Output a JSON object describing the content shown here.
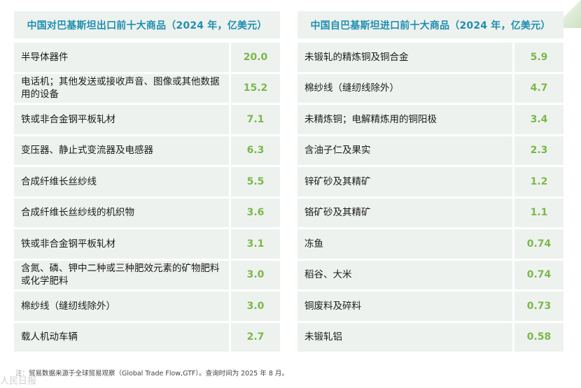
{
  "left_table": {
    "title": "中国对巴基斯坦出口前十大商品（2024 年，亿美元）",
    "rows": [
      {
        "name": "半导体器件",
        "value": "20.0"
      },
      {
        "name": "电话机；其他发送或接收声音、图像或其他数据用的设备",
        "value": "15.2"
      },
      {
        "name": "铁或非合金钢平板轧材",
        "value": "7.1"
      },
      {
        "name": "变压器、静止式变流器及电感器",
        "value": "6.3"
      },
      {
        "name": "合成纤维长丝纱线",
        "value": "5.5"
      },
      {
        "name": "合成纤维长丝纱线的机织物",
        "value": "3.6"
      },
      {
        "name": "铁或非合金钢平板轧材",
        "value": "3.1"
      },
      {
        "name": "含氮、磷、钾中二种或三种肥效元素的矿物肥料或化学肥料",
        "value": "3.0"
      },
      {
        "name": "棉纱线（缝纫线除外）",
        "value": "3.0"
      },
      {
        "name": "载人机动车辆",
        "value": "2.7"
      }
    ]
  },
  "right_table": {
    "title": "中国自巴基斯坦进口前十大商品（2024 年，亿美元）",
    "rows": [
      {
        "name": "未锻轧的精炼铜及铜合金",
        "value": "5.9"
      },
      {
        "name": "棉纱线（缝纫线除外）",
        "value": "4.7"
      },
      {
        "name": "未精炼铜；电解精炼用的铜阳极",
        "value": "3.4"
      },
      {
        "name": "含油子仁及果实",
        "value": "2.3"
      },
      {
        "name": "锌矿砂及其精矿",
        "value": "1.2"
      },
      {
        "name": "铬矿砂及其精矿",
        "value": "1.1"
      },
      {
        "name": "冻鱼",
        "value": "0.74"
      },
      {
        "name": "稻谷、大米",
        "value": "0.74"
      },
      {
        "name": "铜废料及碎料",
        "value": "0.73"
      },
      {
        "name": "未锻轧铝",
        "value": "0.58"
      }
    ]
  },
  "footnote": {
    "label": "注：",
    "text": "贸易数据来源于全球贸易观察（Global Trade Flow,GTF）。查询时间为 2025 年 8 月。"
  },
  "watermark": "人民日报",
  "colors": {
    "header_text": "#1f8fb0",
    "value_text": "#7ab84a",
    "cell_bg": "#eef2ef"
  }
}
